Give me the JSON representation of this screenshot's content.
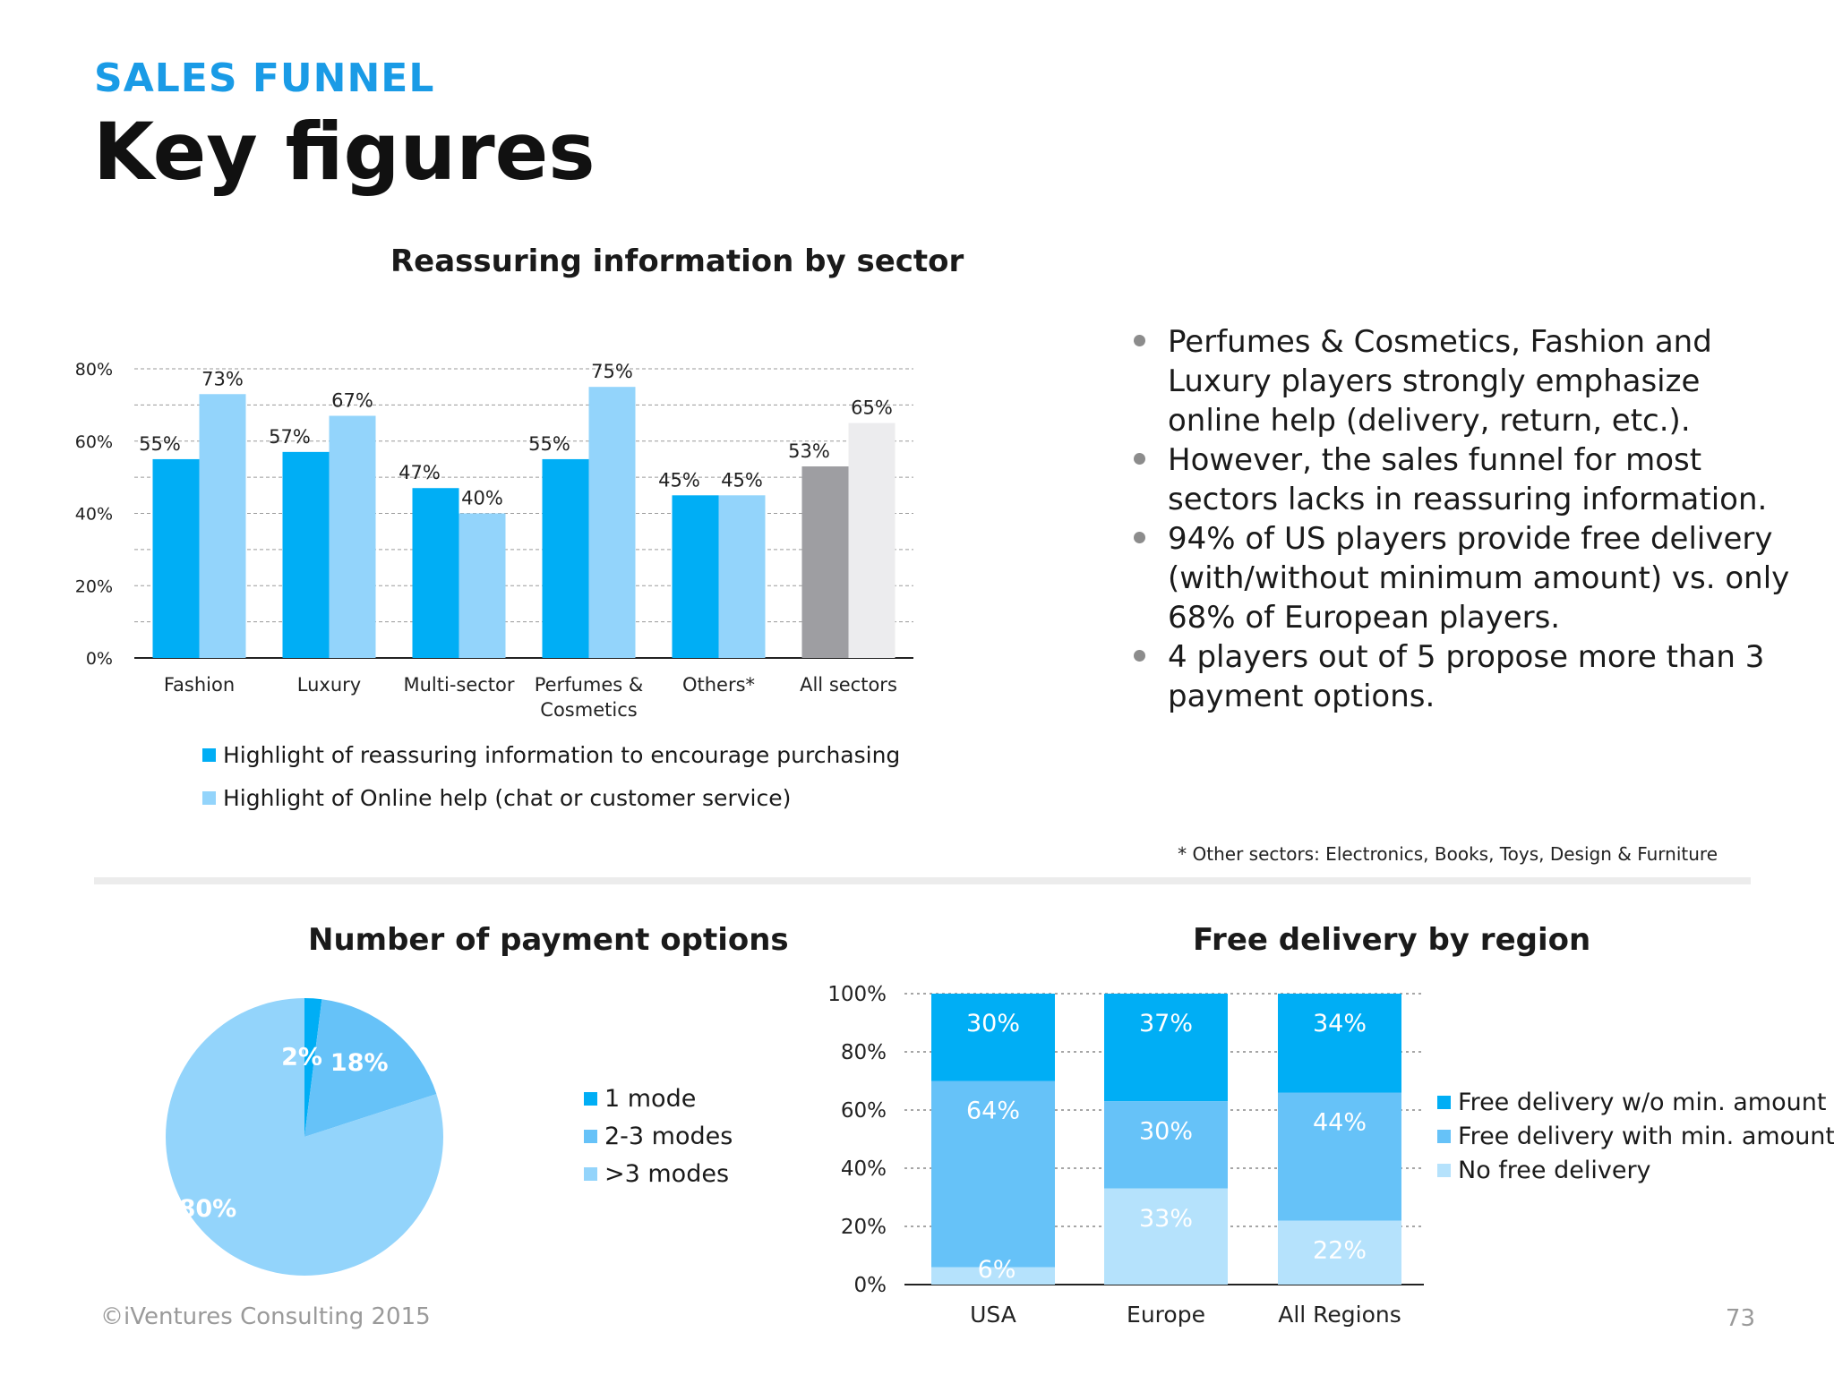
{
  "header": {
    "eyebrow": "SALES FUNNEL",
    "title": "Key figures"
  },
  "colors": {
    "blue": "#00aef5",
    "light_blue": "#93d4fb",
    "mid_blue": "#66c2f8",
    "pale_blue": "#b5e2fc",
    "gray": "#9e9ea2",
    "light_gray": "#ececee"
  },
  "chart_data": [
    {
      "type": "bar",
      "title": "Reassuring information by sector",
      "categories": [
        "Fashion",
        "Luxury",
        "Multi-sector",
        "Perfumes & Cosmetics",
        "Others*",
        "All sectors"
      ],
      "category_lines": [
        [
          "Fashion"
        ],
        [
          "Luxury"
        ],
        [
          "Multi-sector"
        ],
        [
          "Perfumes &",
          "Cosmetics"
        ],
        [
          "Others*"
        ],
        [
          "All sectors"
        ]
      ],
      "series": [
        {
          "name": "Highlight of reassuring information to encourage purchasing",
          "values": [
            55,
            57,
            47,
            55,
            45,
            53
          ],
          "labels": [
            "55%",
            "57%",
            "47%",
            "55%",
            "45%",
            "53%"
          ]
        },
        {
          "name": "Highlight of Online help (chat or customer service)",
          "values": [
            73,
            67,
            40,
            75,
            45,
            65
          ],
          "labels": [
            "73%",
            "67%",
            "40%",
            "75%",
            "45%",
            "65%"
          ]
        }
      ],
      "highlight_category": "All sectors",
      "highlight_colors": [
        "#9e9ea2",
        "#ececee"
      ],
      "ylim": [
        0,
        80
      ],
      "yticks": [
        0,
        20,
        40,
        60,
        80
      ],
      "ytick_labels": [
        "0%",
        "20%",
        "40%",
        "60%",
        "80%"
      ],
      "grid": true,
      "legend": "bottom"
    },
    {
      "type": "pie",
      "title": "Number of payment options",
      "labels": [
        "1 mode",
        "2-3 modes",
        ">3 modes"
      ],
      "values": [
        2,
        18,
        80
      ],
      "value_labels": [
        "2%",
        "18%",
        "80%"
      ],
      "legend": "right"
    },
    {
      "type": "bar",
      "stacked": true,
      "title": "Free delivery by region",
      "categories": [
        "USA",
        "Europe",
        "All Regions"
      ],
      "series": [
        {
          "name": "Free delivery w/o min. amount",
          "values": [
            30,
            37,
            34
          ],
          "labels": [
            "30%",
            "37%",
            "34%"
          ]
        },
        {
          "name": "Free delivery with min. amount",
          "values": [
            64,
            30,
            44
          ],
          "labels": [
            "64%",
            "30%",
            "44%"
          ]
        },
        {
          "name": "No free delivery",
          "values": [
            6,
            33,
            22
          ],
          "labels": [
            "6%",
            "33%",
            "22%"
          ]
        }
      ],
      "ylim": [
        0,
        100
      ],
      "yticks": [
        0,
        20,
        40,
        60,
        80,
        100
      ],
      "ytick_labels": [
        "0%",
        "20%",
        "40%",
        "60%",
        "80%",
        "100%"
      ],
      "grid": true,
      "legend": "right"
    }
  ],
  "bullets": [
    "Perfumes & Cosmetics, Fashion and Luxury players strongly emphasize online help (delivery, return, etc.).",
    "However, the sales funnel for most sectors lacks in reassuring information.",
    "94% of US players provide free delivery (with/without minimum amount) vs.  only 68% of European players.",
    "4 players out of 5 propose more than 3 payment options."
  ],
  "footnote": "* Other sectors: Electronics, Books, Toys, Design & Furniture",
  "footer": {
    "copyright": "©iVentures Consulting 2015",
    "page_number": "73"
  }
}
